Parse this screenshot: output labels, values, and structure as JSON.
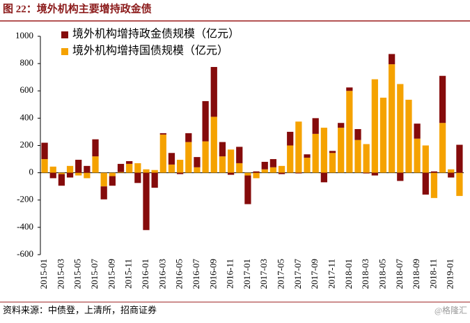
{
  "chart_data": {
    "type": "bar",
    "stacked": true,
    "title": "图 22：境外机构主要增持政金债",
    "source": "资料来源：中债登，上清所，招商证券",
    "watermark": "@格隆汇",
    "categories": [
      "2015-01",
      null,
      "2015-03",
      null,
      "2015-05",
      null,
      "2015-07",
      null,
      "2015-09",
      null,
      "2015-11",
      null,
      "2016-01",
      null,
      "2016-03",
      null,
      "2016-05",
      null,
      "2016-07",
      null,
      "2016-09",
      null,
      "2016-11",
      null,
      "2017-01",
      null,
      "2017-03",
      null,
      "2017-05",
      null,
      "2017-07",
      null,
      "2017-09",
      null,
      "2017-11",
      null,
      "2018-01",
      null,
      "2018-03",
      null,
      "2018-05",
      null,
      "2018-07",
      null,
      "2018-09",
      null,
      "2018-11",
      null,
      "2019-01",
      null
    ],
    "series": [
      {
        "name": "境外机构增持政金债规模（亿元）",
        "color": "#850b0b",
        "values": [
          120,
          -40,
          -85,
          -35,
          95,
          50,
          125,
          -95,
          -70,
          60,
          20,
          -75,
          -420,
          -110,
          10,
          85,
          -10,
          65,
          75,
          295,
          365,
          105,
          -15,
          120,
          -210,
          10,
          55,
          60,
          -10,
          100,
          -5,
          25,
          115,
          -70,
          15,
          35,
          25,
          80,
          -5,
          -20,
          0,
          75,
          -60,
          0,
          110,
          -160,
          10,
          345,
          -35,
          205
        ]
      },
      {
        "name": "境外机构增持国债规模（亿元）",
        "color": "#f5a200",
        "values": [
          100,
          45,
          -10,
          50,
          -20,
          -40,
          120,
          -100,
          -25,
          5,
          65,
          70,
          25,
          20,
          280,
          60,
          95,
          225,
          40,
          230,
          410,
          120,
          170,
          70,
          -20,
          -40,
          25,
          40,
          50,
          200,
          375,
          110,
          285,
          330,
          145,
          330,
          600,
          240,
          210,
          685,
          550,
          795,
          650,
          535,
          250,
          200,
          -185,
          365,
          25,
          -170
        ]
      }
    ],
    "ylim": [
      -600,
      1000
    ],
    "yticks": [
      -600,
      -400,
      -200,
      0,
      200,
      400,
      600,
      800,
      1000
    ],
    "legend": "upper left",
    "grid": false
  }
}
